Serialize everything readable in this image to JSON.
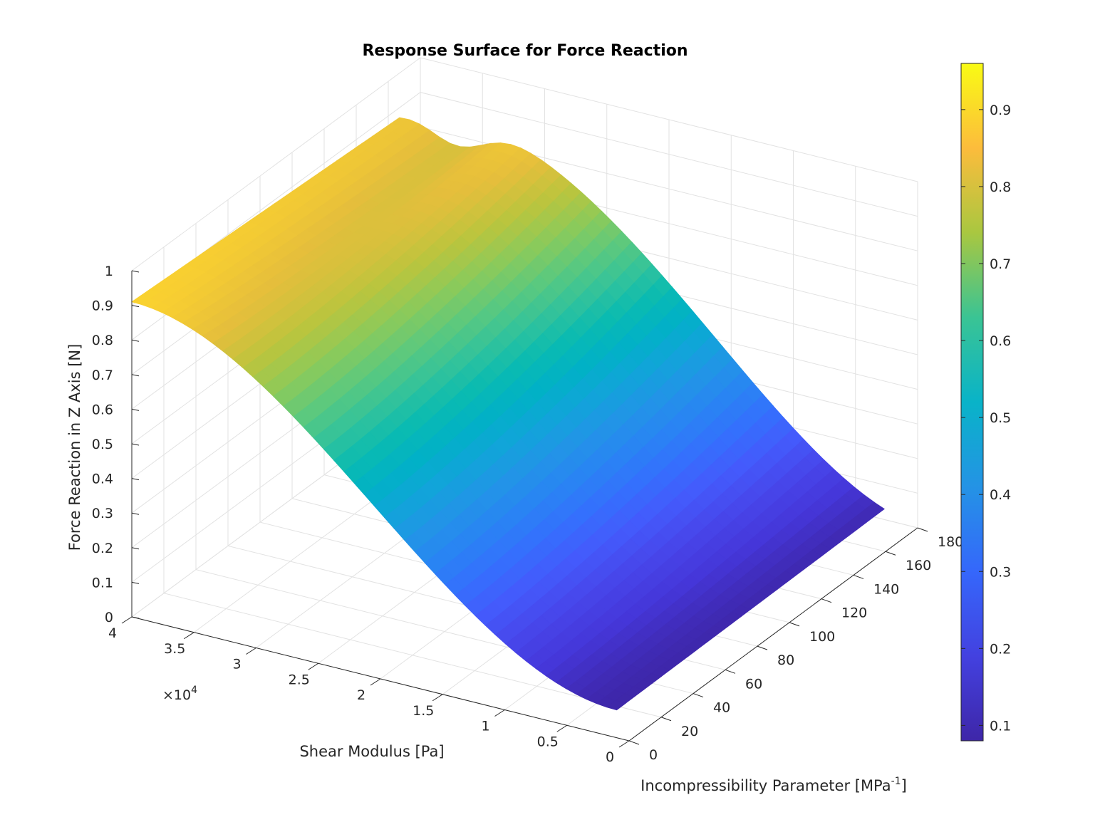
{
  "chart_data": {
    "type": "surface",
    "title": "Response Surface for Force Reaction",
    "xlabel": "Shear Modulus [Pa]",
    "ylabel_main": "Incompressibility Parameter [MPa",
    "ylabel_sup": "-1",
    "ylabel_end": "]",
    "zlabel": "Force Reaction in Z Axis [N]",
    "x_multiplier_base": "×10",
    "x_multiplier_exp": "4",
    "xlim": [
      0,
      40000
    ],
    "ylim": [
      0,
      180
    ],
    "zlim": [
      0,
      1
    ],
    "x_ticks": [
      0,
      0.5,
      1,
      1.5,
      2,
      2.5,
      3,
      3.5,
      4
    ],
    "x_tick_labels": [
      "0",
      "0.5",
      "1",
      "1.5",
      "2",
      "2.5",
      "3",
      "3.5",
      "4"
    ],
    "y_ticks": [
      0,
      20,
      40,
      60,
      80,
      100,
      120,
      140,
      160,
      180
    ],
    "y_tick_labels": [
      "0",
      "20",
      "40",
      "60",
      "80",
      "100",
      "120",
      "140",
      "160",
      "180"
    ],
    "z_ticks": [
      0,
      0.1,
      0.2,
      0.3,
      0.4,
      0.5,
      0.6,
      0.7,
      0.8,
      0.9,
      1
    ],
    "z_tick_labels": [
      "0",
      "0.1",
      "0.2",
      "0.3",
      "0.4",
      "0.5",
      "0.6",
      "0.7",
      "0.8",
      "0.9",
      "1"
    ],
    "surface_x_range": [
      1000,
      40000
    ],
    "surface_y_range": [
      0,
      167
    ],
    "corner_values": {
      "x_max_y_min": 0.91,
      "x_max_y_max": 0.88,
      "x_min_y_min": 0.08,
      "x_min_y_max": 0.09
    },
    "colorbar": {
      "colormap": "parula",
      "limits": [
        0.08,
        0.96
      ],
      "ticks": [
        0.1,
        0.2,
        0.3,
        0.4,
        0.5,
        0.6,
        0.7,
        0.8,
        0.9
      ],
      "tick_labels": [
        "0.1",
        "0.2",
        "0.3",
        "0.4",
        "0.5",
        "0.6",
        "0.7",
        "0.8",
        "0.9"
      ],
      "location": "right"
    },
    "grid": true,
    "box": false
  }
}
